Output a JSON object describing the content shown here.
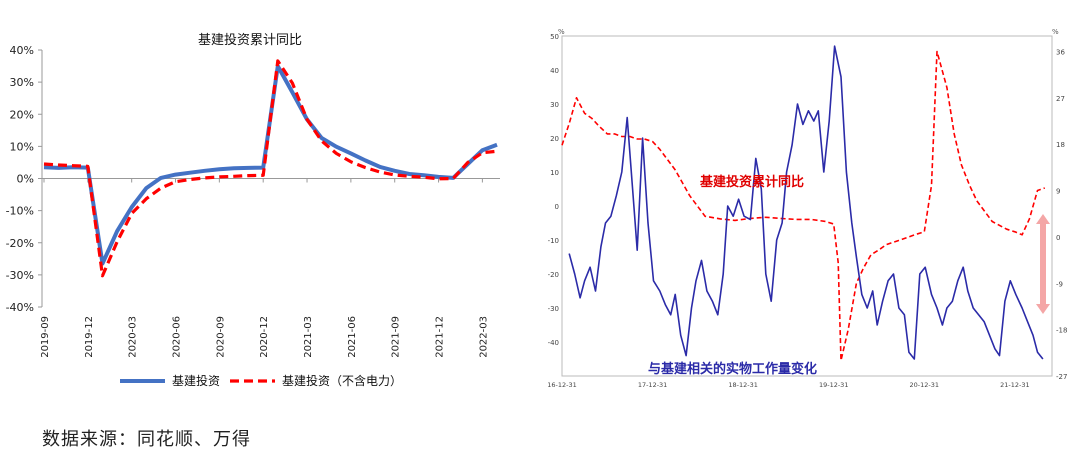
{
  "source_note": "数据来源：同花顺、万得",
  "chart_data": [
    {
      "type": "line",
      "title": "基建投资累计同比",
      "xlabel": "",
      "ylabel": "",
      "ylim": [
        -40,
        40
      ],
      "yticks": [
        "40%",
        "30%",
        "20%",
        "10%",
        "0%",
        "-10%",
        "-20%",
        "-30%",
        "-40%"
      ],
      "ytick_values": [
        40,
        30,
        20,
        10,
        0,
        -10,
        -20,
        -30,
        -40
      ],
      "x_tick_labels": [
        "2019-09",
        "2019-12",
        "2020-03",
        "2020-06",
        "2020-09",
        "2020-12",
        "2021-03",
        "2021-06",
        "2021-09",
        "2021-12",
        "2022-03"
      ],
      "x_tick_index": [
        0,
        3,
        6,
        9,
        12,
        15,
        18,
        21,
        24,
        27,
        30
      ],
      "grid": false,
      "legend": "bottom",
      "series": [
        {
          "name": "基建投资",
          "color": "#4472C4",
          "style": "solid",
          "values": [
            3.5,
            3.3,
            3.5,
            3.4,
            -26.5,
            -16.4,
            -8.9,
            -3.0,
            0.2,
            1.2,
            1.8,
            2.4,
            2.9,
            3.2,
            3.3,
            3.4,
            35.0,
            26.8,
            18.4,
            12.6,
            9.9,
            7.8,
            5.6,
            3.6,
            2.4,
            1.4,
            1.0,
            0.5,
            0.2,
            4.5,
            8.8,
            10.5
          ]
        },
        {
          "name": "基建投资（不含电力）",
          "color": "#FF0000",
          "style": "dashed",
          "values": [
            4.5,
            4.2,
            4.0,
            3.8,
            -30.3,
            -19.7,
            -10.9,
            -6.3,
            -3.0,
            -1.0,
            -0.3,
            0.2,
            0.5,
            0.7,
            0.9,
            1.0,
            36.6,
            29.7,
            18.4,
            11.7,
            7.8,
            5.2,
            3.4,
            2.0,
            1.1,
            0.7,
            0.4,
            -0.1,
            0.0,
            5.0,
            8.0,
            8.5
          ]
        }
      ]
    },
    {
      "type": "line",
      "title": "",
      "left_axis_unit": "%",
      "right_axis_unit": "%",
      "ylim_left": [
        -50,
        50
      ],
      "yticks_left": [
        50,
        40,
        30,
        20,
        10,
        0,
        -10,
        -20,
        -30,
        -40
      ],
      "ylim_right": [
        -27,
        39
      ],
      "yticks_right": [
        36,
        27,
        18,
        9,
        0,
        -9,
        -18,
        -27
      ],
      "x_tick_labels": [
        "16-12-31",
        "17-12-31",
        "18-12-31",
        "19-12-31",
        "20-12-31",
        "21-12-31"
      ],
      "annotations": [
        "基建投资累计同比",
        "与基建相关的实物工作量变化"
      ],
      "grid": false,
      "arrow_color": "#F4A6A6",
      "series": [
        {
          "name": "基建投资累计同比",
          "axis": "right",
          "color": "#FF0000",
          "style": "dashed",
          "x": [
            2016.92,
            2017.0,
            2017.08,
            2017.17,
            2017.25,
            2017.33,
            2017.42,
            2017.5,
            2017.58,
            2017.67,
            2017.75,
            2017.83,
            2017.92,
            2018.0,
            2018.17,
            2018.33,
            2018.5,
            2018.67,
            2018.83,
            2019.0,
            2019.17,
            2019.33,
            2019.5,
            2019.67,
            2019.83,
            2019.92,
            2019.97,
            2020.0,
            2020.08,
            2020.17,
            2020.25,
            2020.33,
            2020.42,
            2020.5,
            2020.67,
            2020.83,
            2020.92,
            2021.0,
            2021.06,
            2021.17,
            2021.25,
            2021.33,
            2021.42,
            2021.5,
            2021.67,
            2021.83,
            2021.92,
            2022.0,
            2022.08,
            2022.17,
            2022.25
          ],
          "values": [
            17.8,
            22,
            27,
            24,
            23,
            21.5,
            20,
            20,
            19.5,
            19.5,
            19,
            19,
            18.5,
            17,
            13,
            8,
            4,
            3.5,
            3.2,
            3.6,
            3.8,
            3.6,
            3.4,
            3.4,
            3.0,
            2.5,
            -5,
            -24,
            -18,
            -9,
            -6,
            -3.5,
            -2.5,
            -1.5,
            -0.5,
            0.5,
            1.0,
            10,
            36,
            29,
            20,
            14,
            10,
            7,
            3,
            1.5,
            1.0,
            0.4,
            3.5,
            9,
            9.5
          ]
        },
        {
          "name": "与基建相关的实物工作量变化",
          "axis": "left",
          "color": "#2B2BA8",
          "style": "solid",
          "x": [
            2017.0,
            2017.06,
            2017.12,
            2017.17,
            2017.23,
            2017.29,
            2017.35,
            2017.4,
            2017.46,
            2017.52,
            2017.58,
            2017.64,
            2017.7,
            2017.75,
            2017.81,
            2017.87,
            2017.93,
            2018.0,
            2018.06,
            2018.12,
            2018.17,
            2018.23,
            2018.29,
            2018.35,
            2018.4,
            2018.46,
            2018.52,
            2018.58,
            2018.64,
            2018.7,
            2018.75,
            2018.81,
            2018.87,
            2018.93,
            2019.0,
            2019.06,
            2019.12,
            2019.17,
            2019.23,
            2019.29,
            2019.35,
            2019.4,
            2019.46,
            2019.52,
            2019.58,
            2019.64,
            2019.7,
            2019.75,
            2019.81,
            2019.87,
            2019.93,
            2020.0,
            2020.06,
            2020.12,
            2020.17,
            2020.23,
            2020.29,
            2020.35,
            2020.4,
            2020.46,
            2020.52,
            2020.58,
            2020.64,
            2020.7,
            2020.75,
            2020.81,
            2020.87,
            2020.93,
            2021.0,
            2021.06,
            2021.12,
            2021.17,
            2021.23,
            2021.29,
            2021.35,
            2021.4,
            2021.46,
            2021.52,
            2021.58,
            2021.64,
            2021.7,
            2021.75,
            2021.81,
            2021.87,
            2021.93,
            2022.0,
            2022.06,
            2022.12,
            2022.17,
            2022.23
          ],
          "values": [
            -14,
            -20,
            -27,
            -22,
            -18,
            -25,
            -12,
            -5,
            -3,
            3,
            10,
            26,
            5,
            -13,
            20,
            -5,
            -22,
            -25,
            -29,
            -32,
            -26,
            -38,
            -44,
            -30,
            -22,
            -16,
            -25,
            -28,
            -32,
            -20,
            0,
            -3,
            2,
            -3,
            -4,
            14,
            5,
            -20,
            -28,
            -10,
            -5,
            10,
            18,
            30,
            24,
            28,
            25,
            28,
            10,
            25,
            47,
            38,
            10,
            -5,
            -15,
            -26,
            -30,
            -25,
            -35,
            -28,
            -22,
            -20,
            -30,
            -32,
            -43,
            -45,
            -20,
            -18,
            -26,
            -30,
            -35,
            -30,
            -28,
            -22,
            -18,
            -25,
            -30,
            -32,
            -34,
            -38,
            -42,
            -44,
            -28,
            -22,
            -26,
            -30,
            -34,
            -38,
            -43,
            -45
          ]
        }
      ]
    }
  ]
}
